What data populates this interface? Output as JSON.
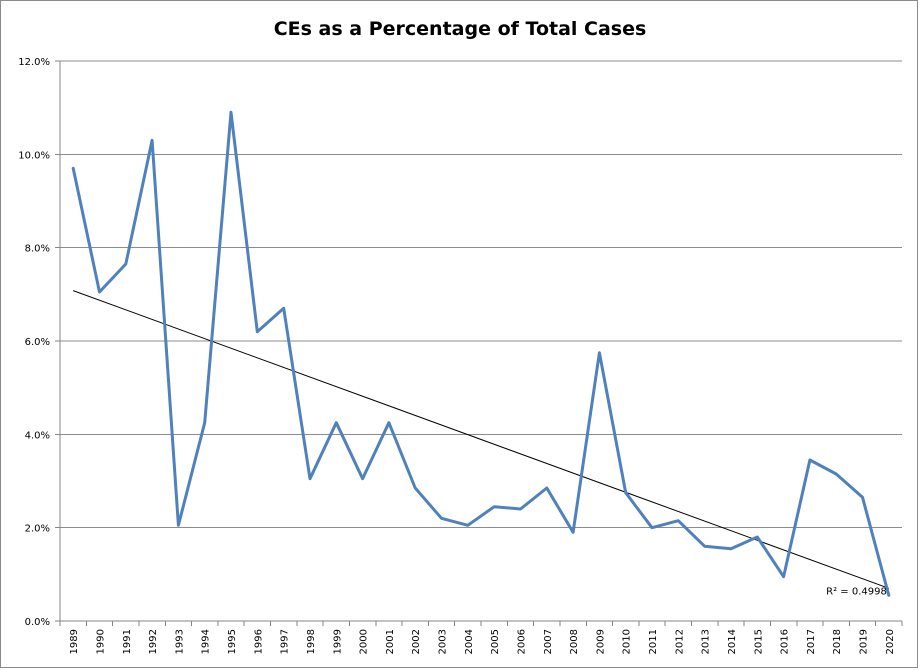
{
  "chart_data": {
    "type": "line",
    "title": "CEs as a Percentage of Total Cases",
    "xlabel": "",
    "ylabel": "",
    "categories": [
      "1989",
      "1990",
      "1991",
      "1992",
      "1993",
      "1994",
      "1995",
      "1996",
      "1997",
      "1998",
      "1999",
      "2000",
      "2001",
      "2002",
      "2003",
      "2004",
      "2005",
      "2006",
      "2007",
      "2008",
      "2009",
      "2010",
      "2011",
      "2012",
      "2013",
      "2014",
      "2015",
      "2016",
      "2017",
      "2018",
      "2019",
      "2020"
    ],
    "series": [
      {
        "values": [
          9.7,
          7.05,
          7.65,
          10.3,
          2.05,
          4.25,
          10.9,
          6.2,
          6.7,
          3.05,
          4.25,
          3.05,
          4.25,
          2.85,
          2.2,
          2.05,
          2.45,
          2.4,
          2.85,
          1.9,
          5.75,
          2.75,
          2.0,
          2.15,
          1.6,
          1.55,
          1.8,
          0.95,
          3.45,
          3.15,
          2.65,
          0.55
        ]
      }
    ],
    "trendline": {
      "type": "linear",
      "start": 7.08,
      "end": 0.7,
      "r2_label": "R² = 0.4998"
    },
    "ylim": [
      0,
      12
    ],
    "yticks": [
      "0.0%",
      "2.0%",
      "4.0%",
      "6.0%",
      "8.0%",
      "10.0%",
      "12.0%"
    ],
    "grid": true,
    "legend": "none",
    "colors": {
      "series": "#4f81bd",
      "trend": "#000000",
      "grid": "#8c8c8c",
      "axis": "#868686"
    }
  }
}
